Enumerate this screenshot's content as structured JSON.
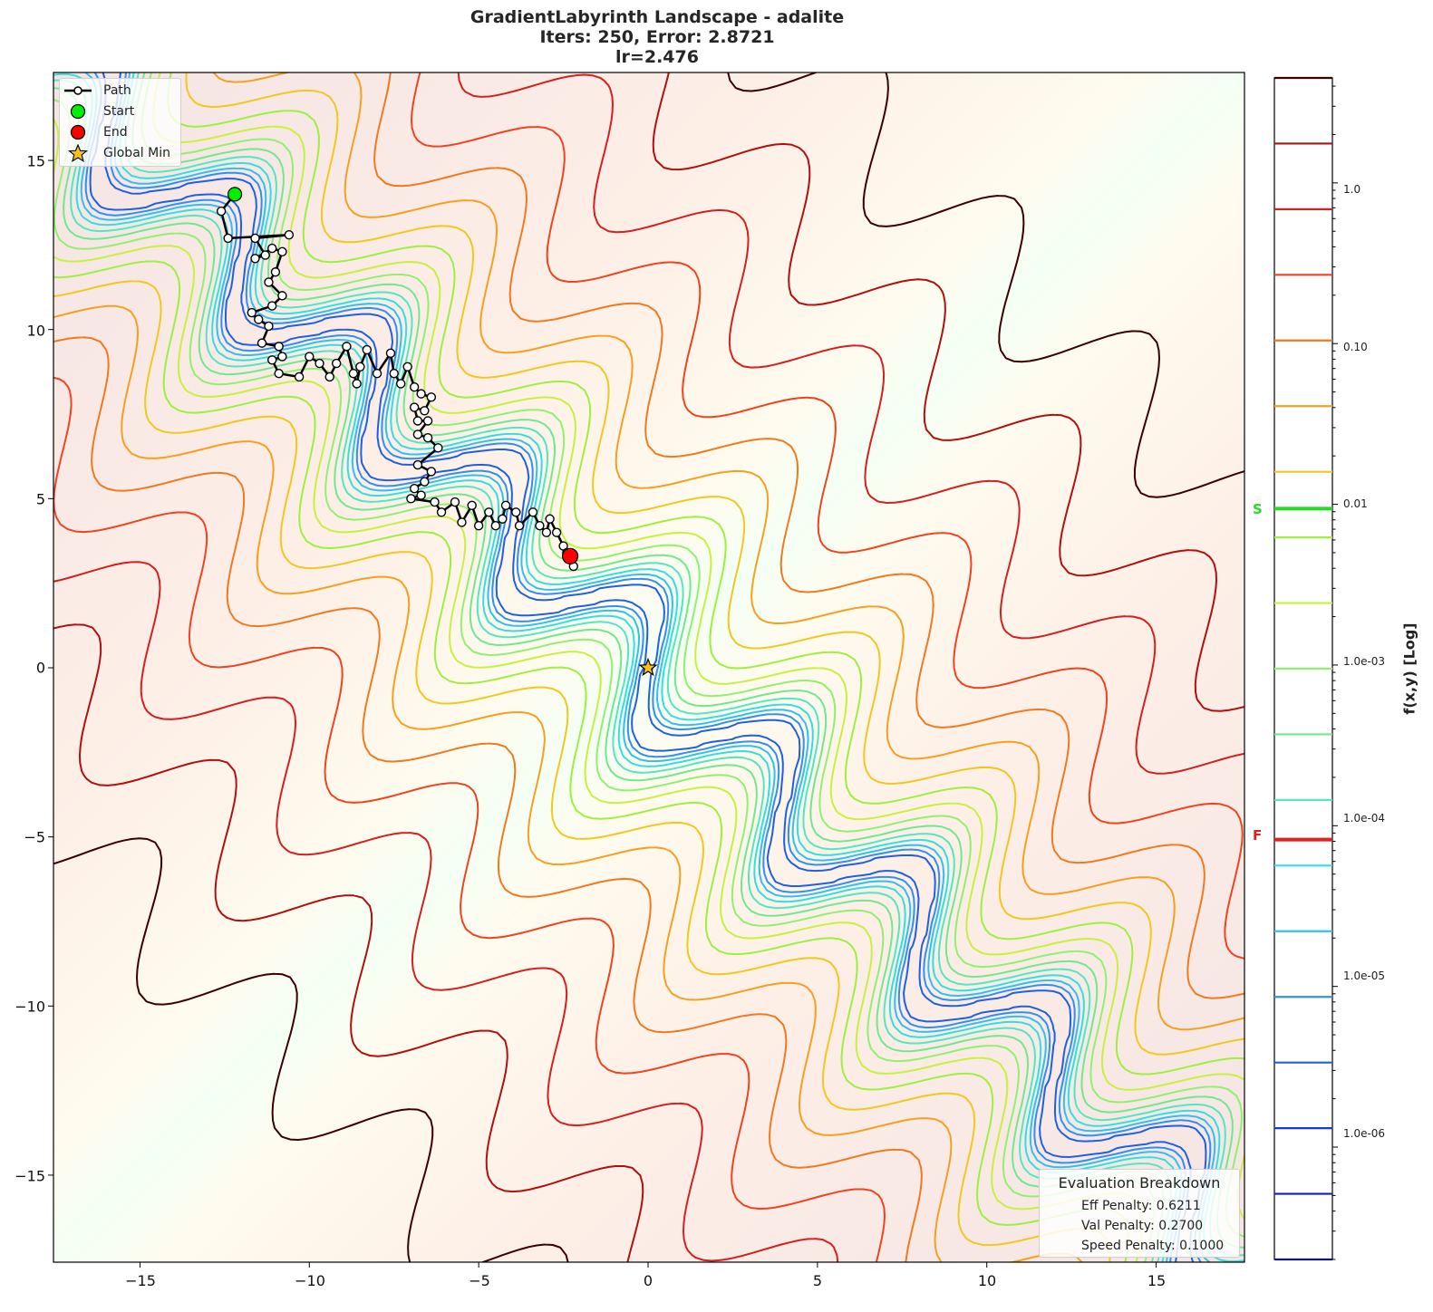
{
  "title": {
    "line1": "GradientLabyrinth Landscape - adalite",
    "line2": "Iters: 250, Error: 2.8721",
    "line3": "lr=2.476"
  },
  "legend": {
    "path": "Path",
    "start": "Start",
    "end": "End",
    "global_min": "Global Min"
  },
  "evaluation": {
    "heading": "Evaluation Breakdown",
    "eff": "Eff Penalty: 0.6211",
    "val": "Val Penalty: 0.2700",
    "speed": "Speed Penalty: 0.1000"
  },
  "colorbar": {
    "label": "f(x,y) [Log]",
    "ticks": [
      "1.0",
      "0.10",
      "0.01",
      "1.0e-03",
      "1.0e-04",
      "1.0e-05",
      "1.0e-06"
    ],
    "marker_s": "S",
    "marker_f": "F",
    "marker_s_color": "#22dd22",
    "marker_f_color": "#dd2222"
  },
  "axes": {
    "xticks": [
      "−15",
      "−10",
      "−5",
      "0",
      "5",
      "10",
      "15"
    ],
    "yticks": [
      "15",
      "10",
      "5",
      "0",
      "−5",
      "−10",
      "−15"
    ]
  },
  "chart_data": {
    "type": "contour",
    "title": "GradientLabyrinth Landscape - adalite\nIters: 250, Error: 2.8721\nlr=2.476",
    "xlabel": "",
    "ylabel": "",
    "colorbar_label": "f(x,y) [Log]",
    "xlim": [
      -17.6,
      17.6
    ],
    "ylim": [
      -17.6,
      17.6
    ],
    "xticks": [
      -15,
      -10,
      -5,
      0,
      5,
      10,
      15
    ],
    "yticks": [
      -15,
      -10,
      -5,
      0,
      5,
      10,
      15
    ],
    "colorbar_scale": "log",
    "colorbar_range": [
      2e-07,
      5.0
    ],
    "colorbar_ticks": [
      1.0,
      0.1,
      0.01,
      0.001,
      0.0001,
      1e-05,
      1e-06
    ],
    "contour_level_colors": [
      "#3b0000",
      "#b01010",
      "#d42020",
      "#ee4422",
      "#f07a20",
      "#f5a020",
      "#f0c820",
      "#a0ee40",
      "#c8f040",
      "#90f070",
      "#70e890",
      "#50e8c0",
      "#30e0e0",
      "#30c0f0",
      "#3090f0",
      "#2060e0",
      "#1838d8",
      "#1020c0",
      "#101090"
    ],
    "markers": {
      "start": {
        "x": -12.2,
        "y": 14.0,
        "color": "#00dd00"
      },
      "end": {
        "x": -2.3,
        "y": 3.3,
        "color": "#ee0000"
      },
      "global_min": {
        "x": 0.0,
        "y": 0.0,
        "color": "#f5c020"
      },
      "colorbar_S": 0.0094,
      "colorbar_F": 8.2e-05
    },
    "path_points": [
      [
        -12.2,
        14.0
      ],
      [
        -12.6,
        13.5
      ],
      [
        -12.4,
        12.7
      ],
      [
        -10.6,
        12.8
      ],
      [
        -11.6,
        12.7
      ],
      [
        -11.3,
        12.2
      ],
      [
        -11.6,
        12.1
      ],
      [
        -11.1,
        12.4
      ],
      [
        -10.8,
        12.3
      ],
      [
        -11.0,
        11.7
      ],
      [
        -11.2,
        11.4
      ],
      [
        -10.8,
        11.0
      ],
      [
        -11.1,
        10.7
      ],
      [
        -11.7,
        10.5
      ],
      [
        -11.5,
        10.3
      ],
      [
        -11.2,
        10.1
      ],
      [
        -11.4,
        9.6
      ],
      [
        -10.9,
        9.5
      ],
      [
        -10.8,
        9.2
      ],
      [
        -11.1,
        9.1
      ],
      [
        -10.9,
        8.7
      ],
      [
        -10.3,
        8.6
      ],
      [
        -10.0,
        9.2
      ],
      [
        -9.7,
        9.0
      ],
      [
        -9.4,
        8.6
      ],
      [
        -9.2,
        9.0
      ],
      [
        -8.9,
        9.5
      ],
      [
        -8.7,
        8.7
      ],
      [
        -8.6,
        8.4
      ],
      [
        -8.5,
        8.9
      ],
      [
        -8.3,
        9.4
      ],
      [
        -8.0,
        8.7
      ],
      [
        -7.6,
        9.3
      ],
      [
        -7.5,
        8.7
      ],
      [
        -7.3,
        8.4
      ],
      [
        -7.1,
        8.9
      ],
      [
        -6.9,
        8.3
      ],
      [
        -6.7,
        8.1
      ],
      [
        -6.4,
        8.0
      ],
      [
        -6.6,
        7.6
      ],
      [
        -6.9,
        7.7
      ],
      [
        -6.8,
        7.3
      ],
      [
        -6.5,
        7.3
      ],
      [
        -6.8,
        6.9
      ],
      [
        -6.5,
        6.8
      ],
      [
        -6.2,
        6.5
      ],
      [
        -6.8,
        6.0
      ],
      [
        -6.4,
        5.8
      ],
      [
        -6.6,
        5.5
      ],
      [
        -6.9,
        5.3
      ],
      [
        -6.7,
        5.1
      ],
      [
        -7.0,
        5.0
      ],
      [
        -6.3,
        4.9
      ],
      [
        -6.1,
        4.6
      ],
      [
        -5.7,
        4.9
      ],
      [
        -5.5,
        4.3
      ],
      [
        -5.2,
        4.8
      ],
      [
        -5.0,
        4.2
      ],
      [
        -4.7,
        4.6
      ],
      [
        -4.5,
        4.2
      ],
      [
        -4.3,
        4.4
      ],
      [
        -4.2,
        4.8
      ],
      [
        -3.9,
        4.6
      ],
      [
        -3.8,
        4.2
      ],
      [
        -3.4,
        4.6
      ],
      [
        -3.2,
        4.2
      ],
      [
        -3.0,
        4.0
      ],
      [
        -2.9,
        4.4
      ],
      [
        -2.7,
        4.0
      ],
      [
        -2.5,
        3.6
      ],
      [
        -2.3,
        3.3
      ],
      [
        -2.2,
        3.0
      ],
      [
        -2.4,
        3.4
      ],
      [
        -2.3,
        3.3
      ]
    ]
  }
}
